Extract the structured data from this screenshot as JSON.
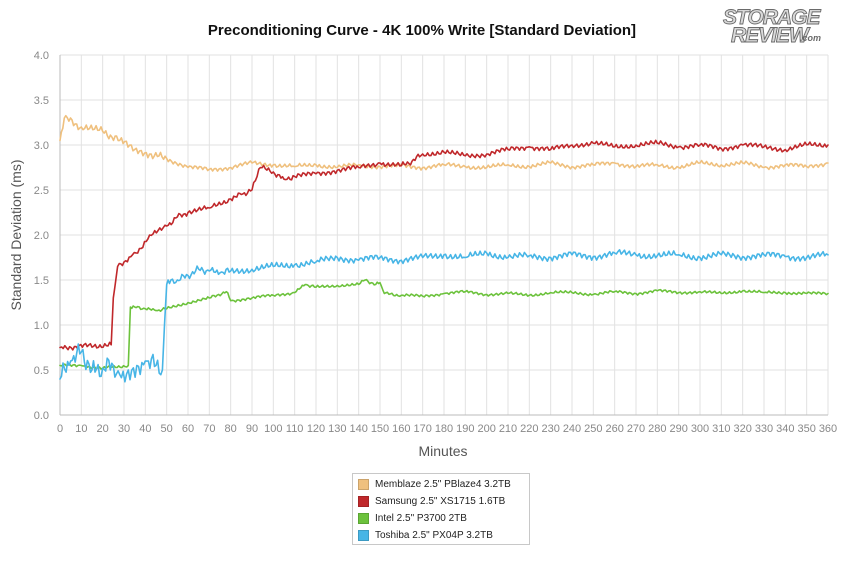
{
  "chart_data": {
    "type": "line",
    "title": "Preconditioning Curve - 4K 100% Write [Standard Deviation]",
    "xlabel": "Minutes",
    "ylabel": "Standard Deviation (ms)",
    "xlim": [
      0,
      360
    ],
    "ylim": [
      0,
      4.0
    ],
    "xticks": [
      "0",
      "10",
      "20",
      "30",
      "40",
      "50",
      "60",
      "70",
      "80",
      "90",
      "100",
      "110",
      "120",
      "130",
      "140",
      "150",
      "160",
      "170",
      "180",
      "190",
      "200",
      "210",
      "220",
      "230",
      "240",
      "250",
      "260",
      "270",
      "280",
      "290",
      "300",
      "310",
      "320",
      "330",
      "340",
      "350",
      "360"
    ],
    "yticks": [
      "0.0",
      "0.5",
      "1.0",
      "1.5",
      "2.0",
      "2.5",
      "3.0",
      "3.5",
      "4.0"
    ],
    "grid": true,
    "legend_position": "bottom-center",
    "series": [
      {
        "name": "Memblaze 2.5\" PBlaze4 3.2TB",
        "color": "#efc07e",
        "x": [
          0,
          2,
          10,
          20,
          28,
          35,
          42,
          50,
          60,
          70,
          80,
          90,
          100,
          110,
          120,
          130,
          140,
          150,
          160,
          170,
          180,
          190,
          200,
          210,
          220,
          230,
          240,
          250,
          260,
          270,
          280,
          290,
          300,
          310,
          320,
          330,
          340,
          350,
          360
        ],
        "y": [
          3.05,
          3.3,
          3.2,
          3.15,
          3.05,
          2.95,
          2.9,
          2.85,
          2.75,
          2.73,
          2.75,
          2.8,
          2.78,
          2.76,
          2.78,
          2.75,
          2.78,
          2.76,
          2.77,
          2.75,
          2.78,
          2.76,
          2.75,
          2.78,
          2.76,
          2.8,
          2.76,
          2.78,
          2.8,
          2.76,
          2.78,
          2.75,
          2.8,
          2.78,
          2.8,
          2.75,
          2.78,
          2.76,
          2.8
        ]
      },
      {
        "name": "Samsung 2.5\" XS1715 1.6TB",
        "color": "#c0282b",
        "x": [
          0,
          24,
          25,
          27,
          30,
          34,
          38,
          42,
          46,
          50,
          55,
          60,
          70,
          80,
          85,
          90,
          94,
          100,
          105,
          110,
          120,
          130,
          140,
          150,
          160,
          165,
          170,
          180,
          190,
          200,
          210,
          220,
          230,
          240,
          250,
          260,
          270,
          280,
          290,
          300,
          310,
          320,
          330,
          340,
          350,
          360
        ],
        "y": [
          0.75,
          0.78,
          1.3,
          1.65,
          1.7,
          1.78,
          1.85,
          2.0,
          2.05,
          2.1,
          2.2,
          2.25,
          2.3,
          2.4,
          2.45,
          2.5,
          2.75,
          2.7,
          2.62,
          2.65,
          2.68,
          2.72,
          2.75,
          2.8,
          2.77,
          2.82,
          2.9,
          2.92,
          2.88,
          2.9,
          2.95,
          2.98,
          2.95,
          3.0,
          3.02,
          2.98,
          3.0,
          3.02,
          2.98,
          3.0,
          2.96,
          3.0,
          2.98,
          2.95,
          3.0,
          3.0
        ]
      },
      {
        "name": "Intel 2.5\" P3700 2TB",
        "color": "#6cc23c",
        "x": [
          0,
          10,
          20,
          32,
          33,
          35,
          40,
          45,
          50,
          60,
          70,
          78,
          80,
          90,
          100,
          110,
          115,
          120,
          130,
          140,
          143,
          148,
          150,
          152,
          160,
          170,
          180,
          190,
          200,
          210,
          220,
          230,
          240,
          250,
          260,
          270,
          280,
          290,
          300,
          310,
          320,
          330,
          340,
          350,
          360
        ],
        "y": [
          0.55,
          0.55,
          0.52,
          0.55,
          1.2,
          1.2,
          1.18,
          1.16,
          1.18,
          1.25,
          1.3,
          1.37,
          1.27,
          1.3,
          1.33,
          1.36,
          1.45,
          1.42,
          1.44,
          1.45,
          1.5,
          1.45,
          1.47,
          1.35,
          1.33,
          1.32,
          1.35,
          1.37,
          1.34,
          1.35,
          1.33,
          1.36,
          1.36,
          1.34,
          1.37,
          1.35,
          1.38,
          1.36,
          1.37,
          1.35,
          1.38,
          1.36,
          1.36,
          1.35,
          1.35
        ]
      },
      {
        "name": "Toshiba 2.5\" PX04P 3.2TB",
        "color": "#47b5e6",
        "x": [
          0,
          5,
          10,
          15,
          20,
          25,
          28,
          32,
          36,
          40,
          45,
          48,
          49,
          50,
          52,
          55,
          60,
          65,
          70,
          75,
          80,
          90,
          100,
          110,
          120,
          130,
          140,
          150,
          160,
          170,
          180,
          190,
          200,
          210,
          220,
          230,
          240,
          250,
          260,
          270,
          280,
          290,
          300,
          310,
          320,
          330,
          340,
          350,
          360
        ],
        "y": [
          0.4,
          0.6,
          0.7,
          0.5,
          0.52,
          0.55,
          0.45,
          0.5,
          0.55,
          0.6,
          0.55,
          0.5,
          1.0,
          1.45,
          1.5,
          1.5,
          1.55,
          1.62,
          1.6,
          1.58,
          1.6,
          1.62,
          1.65,
          1.67,
          1.7,
          1.75,
          1.72,
          1.75,
          1.72,
          1.75,
          1.78,
          1.75,
          1.8,
          1.75,
          1.77,
          1.75,
          1.78,
          1.76,
          1.8,
          1.78,
          1.77,
          1.78,
          1.75,
          1.78,
          1.76,
          1.78,
          1.76,
          1.75,
          1.78
        ]
      }
    ]
  },
  "logo": {
    "line1": "STORAGE",
    "line2": "REVIEW",
    "suffix": ".com"
  }
}
